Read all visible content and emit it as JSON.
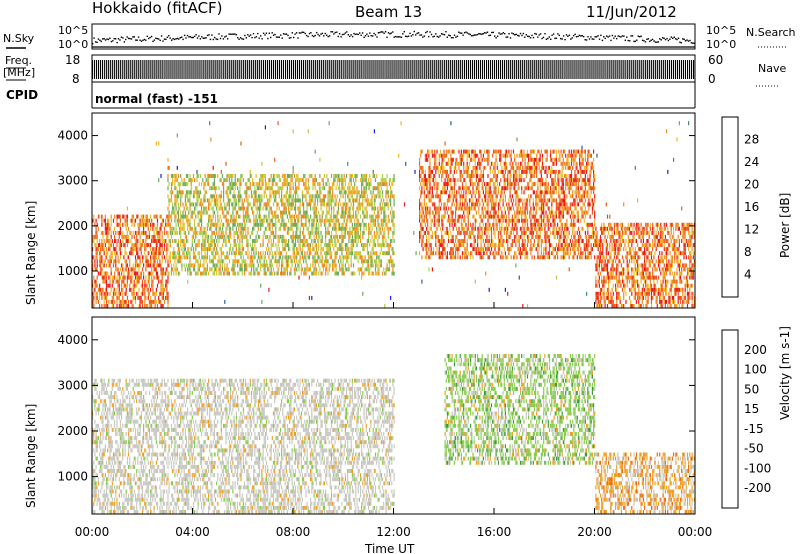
{
  "header": {
    "station": "Hokkaido (fitACF)",
    "beam": "Beam 13",
    "date": "11/Jun/2012"
  },
  "strip_labels": {
    "nsky": "N.Sky",
    "nsearch": "N.Search",
    "freq_line1": "Freq.",
    "freq_line2": "[MHz]",
    "nave": "Nave",
    "cpid": "CPID",
    "noise_tick_high_left": "10^5",
    "noise_tick_low_left": "10^0",
    "noise_tick_high_right": "10^5",
    "noise_tick_low_right": "10^0",
    "freq_tick_high": "18",
    "freq_tick_low": "8",
    "nave_tick_high": "60",
    "nave_tick_low": "0",
    "mode_text": "normal (fast) -151"
  },
  "colors": {
    "power_scale": [
      "#1a1ae6",
      "#2a5aa6",
      "#3c8c6e",
      "#6aaa5a",
      "#a8d24a",
      "#f0b820",
      "#f08a20",
      "#ee5a1a",
      "#e81818"
    ],
    "velocity_scale": [
      "#1616cc",
      "#2a6a4a",
      "#3c9a3c",
      "#86cc4a",
      "#c8c8c0",
      "#f0a020",
      "#ee6a10",
      "#e83010",
      "#ff0000"
    ]
  },
  "chart_data": [
    {
      "type": "heatmap",
      "title": "",
      "xlabel": "",
      "ylabel": "Slant Range [km]",
      "x_range_hours": [
        0,
        24
      ],
      "ylim": [
        180,
        4500
      ],
      "y_ticks": [
        "1000",
        "2000",
        "3000",
        "4000"
      ],
      "colorbar": {
        "label": "Power [dB]",
        "ticks": [
          "4",
          "8",
          "12",
          "16",
          "20",
          "24",
          "28"
        ],
        "range": [
          0,
          30
        ]
      },
      "echo_regions": [
        {
          "t_start": 0,
          "t_end": 3,
          "r_min": 180,
          "r_max": 2200,
          "level": "high"
        },
        {
          "t_start": 3,
          "t_end": 12,
          "r_min": 900,
          "r_max": 3100,
          "level": "medium"
        },
        {
          "t_start": 13,
          "t_end": 20,
          "r_min": 1200,
          "r_max": 3600,
          "level": "high"
        },
        {
          "t_start": 20,
          "t_end": 24,
          "r_min": 180,
          "r_max": 2000,
          "level": "high"
        }
      ]
    },
    {
      "type": "heatmap",
      "title": "",
      "xlabel": "Time UT",
      "ylabel": "Slant Range [km]",
      "x_range_hours": [
        0,
        24
      ],
      "ylim": [
        180,
        4500
      ],
      "y_ticks": [
        "1000",
        "2000",
        "3000",
        "4000"
      ],
      "x_ticks": [
        "00:00",
        "04:00",
        "08:00",
        "12:00",
        "16:00",
        "20:00",
        "00:00"
      ],
      "colorbar": {
        "label": "Velocity [m s-1]",
        "ticks": [
          "200",
          "100",
          "50",
          "15",
          "-15",
          "-50",
          "-100",
          "-200"
        ],
        "range": [
          -300,
          300
        ]
      },
      "echo_regions": [
        {
          "t_start": 0,
          "t_end": 12,
          "r_min": 180,
          "r_max": 3100,
          "level": "near-zero"
        },
        {
          "t_start": 14,
          "t_end": 20,
          "r_min": 1200,
          "r_max": 3600,
          "level": "positive"
        },
        {
          "t_start": 20,
          "t_end": 24,
          "r_min": 180,
          "r_max": 1500,
          "level": "negative"
        }
      ]
    }
  ]
}
